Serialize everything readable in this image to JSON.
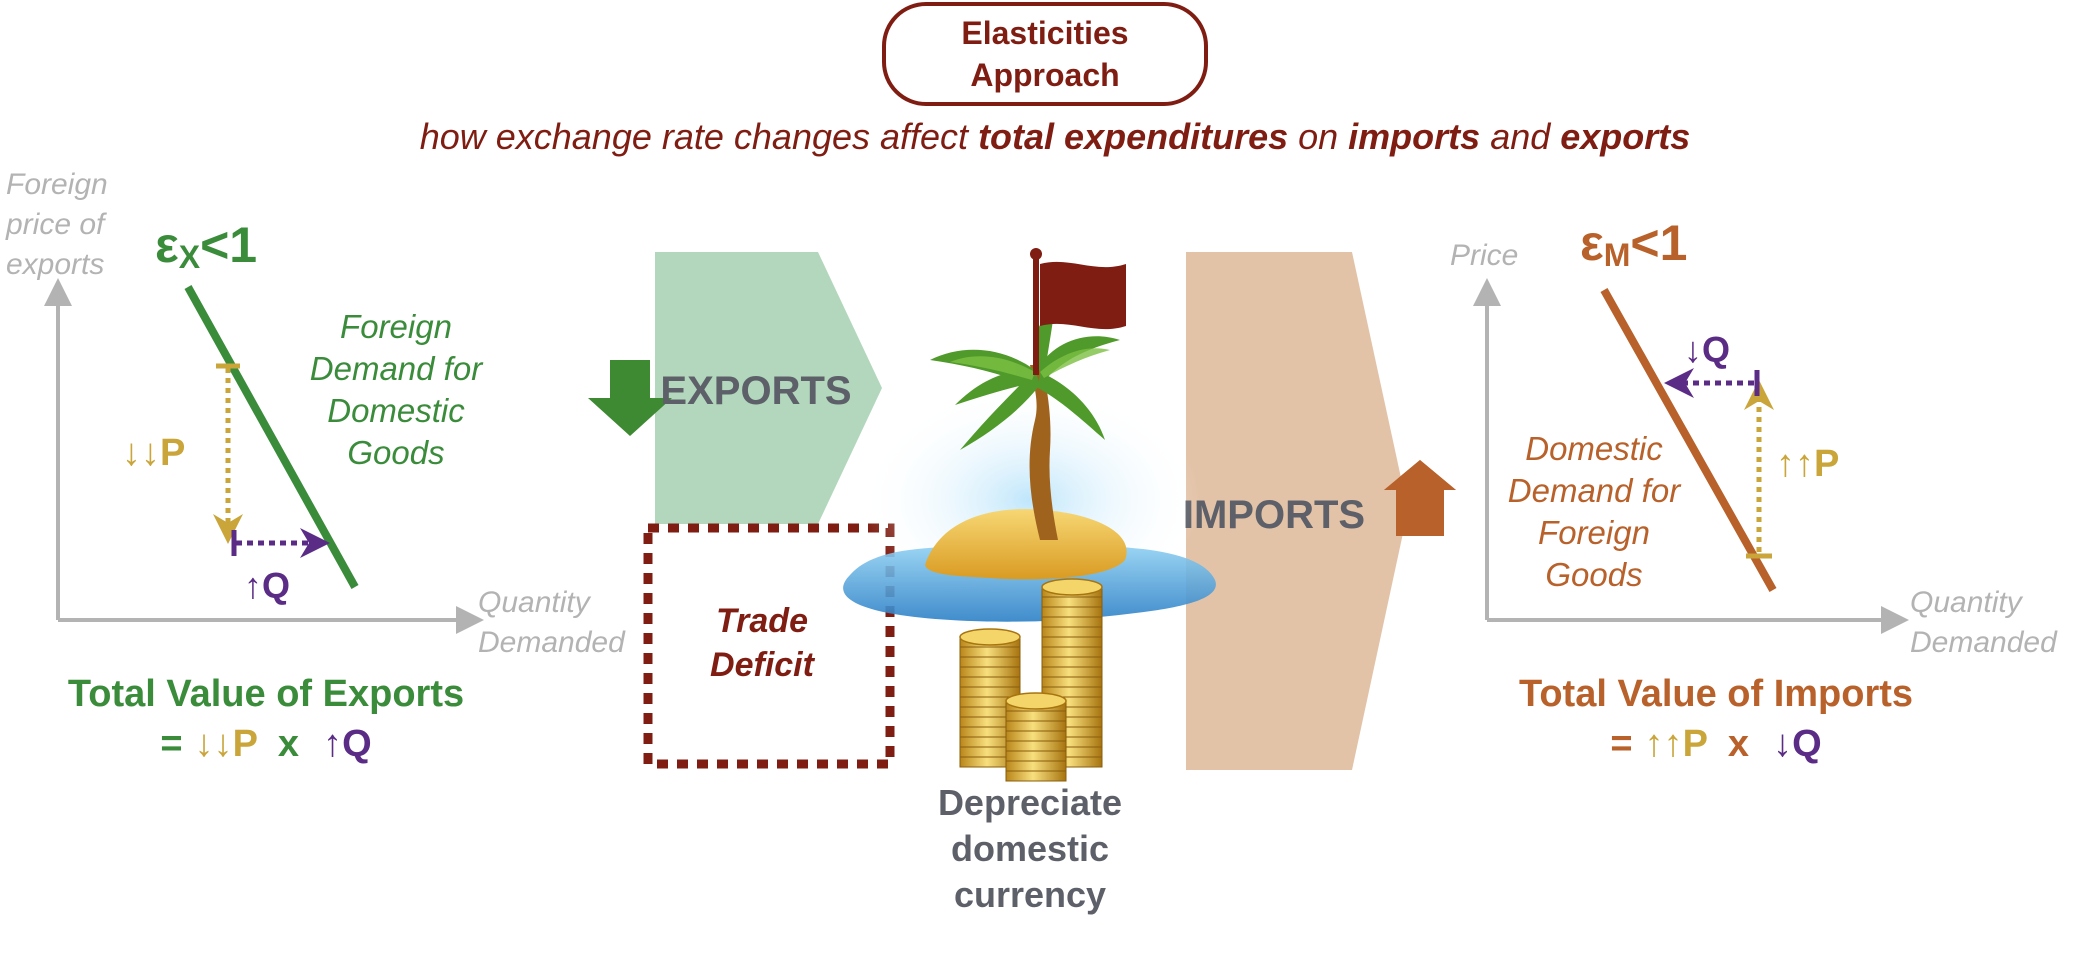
{
  "header": {
    "title_line1": "Elasticities",
    "title_line2": "Approach",
    "subtitle_parts": [
      {
        "text": "how exchange rate changes affect ",
        "bold": false
      },
      {
        "text": "total expenditures",
        "bold": true
      },
      {
        "text": " on ",
        "bold": false
      },
      {
        "text": "imports",
        "bold": true
      },
      {
        "text": " and ",
        "bold": false
      },
      {
        "text": "exports",
        "bold": true
      }
    ]
  },
  "left_chart": {
    "y_axis_label": [
      "Foreign",
      "price of",
      "exports"
    ],
    "x_axis_label": [
      "Quantity",
      "Demanded"
    ],
    "elasticity": {
      "symbol": "ε",
      "subscript": "X",
      "rest": "<1"
    },
    "curve_label": [
      "Foreign",
      "Demand for",
      "Domestic",
      "Goods"
    ],
    "price_change": "↓↓P",
    "quantity_change": "↑Q",
    "total_title": "Total Value of Exports",
    "total_formula": {
      "eq": "=",
      "p": "↓↓P",
      "x": "x",
      "q": "↑Q"
    }
  },
  "center": {
    "exports_label": "EXPORTS",
    "imports_label": "IMPORTS",
    "trade_deficit": [
      "Trade",
      "Deficit"
    ],
    "depreciate": [
      "Depreciate",
      "domestic",
      "currency"
    ]
  },
  "right_chart": {
    "y_axis_label": "Price",
    "x_axis_label": [
      "Quantity",
      "Demanded"
    ],
    "elasticity": {
      "symbol": "ε",
      "subscript": "M",
      "rest": "<1"
    },
    "curve_label": [
      "Domestic",
      "Demand for",
      "Foreign",
      "Goods"
    ],
    "price_change": "↑↑P",
    "quantity_change": "↓Q",
    "total_title": "Total Value of Imports",
    "total_formula": {
      "eq": "=",
      "p": "↑↑P",
      "x": "x",
      "q": "↓Q"
    }
  },
  "colors": {
    "dark_red": "#7f1d12",
    "green": "#3a8c3b",
    "gold": "#c9a53a",
    "purple": "#5b2c86",
    "orange": "#b8612a",
    "gray": "#b3b3b3",
    "slate": "#5d6068",
    "exports_fill": "#b2d7bd",
    "imports_fill": "#e3c3a8"
  },
  "icons": [
    "down-arrow-icon",
    "up-arrow-icon",
    "palm-island-icon",
    "flag-icon",
    "coins-icon"
  ]
}
